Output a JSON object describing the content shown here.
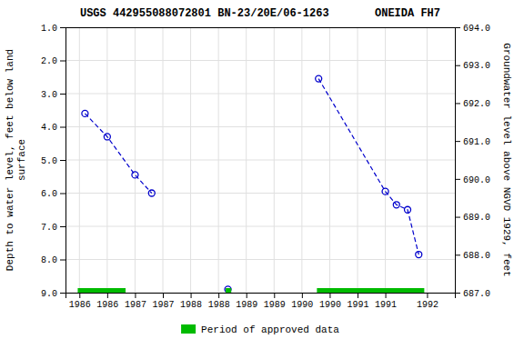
{
  "chart_data": {
    "type": "line",
    "title": "USGS 442955088072801 BN-23/20E/06-1263       ONEIDA FH7",
    "ylabel": "Depth to water level, feet below land\nsurface",
    "y2label": "Groundwater level above NGVD 1929, feet",
    "xlim": [
      1985.5,
      1992.5
    ],
    "xticks": [
      {
        "value": 1985.75,
        "label": "1986"
      },
      {
        "value": 1986.25,
        "label": "1986"
      },
      {
        "value": 1986.75,
        "label": "1987"
      },
      {
        "value": 1987.25,
        "label": "1987"
      },
      {
        "value": 1987.75,
        "label": "1988"
      },
      {
        "value": 1988.25,
        "label": "1988"
      },
      {
        "value": 1988.75,
        "label": "1989"
      },
      {
        "value": 1989.25,
        "label": "1989"
      },
      {
        "value": 1989.75,
        "label": "1990"
      },
      {
        "value": 1990.25,
        "label": "1990"
      },
      {
        "value": 1990.75,
        "label": "1991"
      },
      {
        "value": 1991.25,
        "label": "1991"
      },
      {
        "value": 1992.0,
        "label": "1992"
      }
    ],
    "ylim": [
      9.0,
      1.0
    ],
    "yticks": [
      {
        "value": 1.0,
        "label": "1.0"
      },
      {
        "value": 2.0,
        "label": "2.0"
      },
      {
        "value": 3.0,
        "label": "3.0"
      },
      {
        "value": 4.0,
        "label": "4.0"
      },
      {
        "value": 5.0,
        "label": "5.0"
      },
      {
        "value": 6.0,
        "label": "6.0"
      },
      {
        "value": 7.0,
        "label": "7.0"
      },
      {
        "value": 8.0,
        "label": "8.0"
      },
      {
        "value": 9.0,
        "label": "9.0"
      }
    ],
    "y2lim": [
      687.0,
      694.0
    ],
    "y2ticks": [
      {
        "value": 687.0,
        "label": "687.0"
      },
      {
        "value": 688.0,
        "label": "688.0"
      },
      {
        "value": 689.0,
        "label": "689.0"
      },
      {
        "value": 690.0,
        "label": "690.0"
      },
      {
        "value": 691.0,
        "label": "691.0"
      },
      {
        "value": 692.0,
        "label": "692.0"
      },
      {
        "value": 693.0,
        "label": "693.0"
      },
      {
        "value": 694.0,
        "label": "694.0"
      }
    ],
    "grid": true,
    "legend": "bottom",
    "series": [
      {
        "color": "#0000cc",
        "line_style": "dashed",
        "marker": "open-circle",
        "x": [
          1985.85,
          1986.25,
          1986.75,
          1987.05
        ],
        "values": [
          3.6,
          4.3,
          5.45,
          6.0
        ]
      },
      {
        "color": "#0000cc",
        "line_style": "none",
        "marker": "open-circle",
        "x": [
          1988.42
        ],
        "values": [
          8.9
        ]
      },
      {
        "color": "#0000cc",
        "line_style": "dashed",
        "marker": "open-circle",
        "x": [
          1990.05,
          1991.25,
          1991.45,
          1991.65,
          1991.85
        ],
        "values": [
          2.55,
          5.95,
          6.35,
          6.5,
          7.85
        ]
      }
    ],
    "approved_periods": {
      "name": "Period of approved data",
      "color": "#00bb00",
      "periods": [
        [
          1985.72,
          1986.58
        ],
        [
          1988.38,
          1988.48
        ],
        [
          1990.02,
          1991.95
        ]
      ]
    }
  }
}
